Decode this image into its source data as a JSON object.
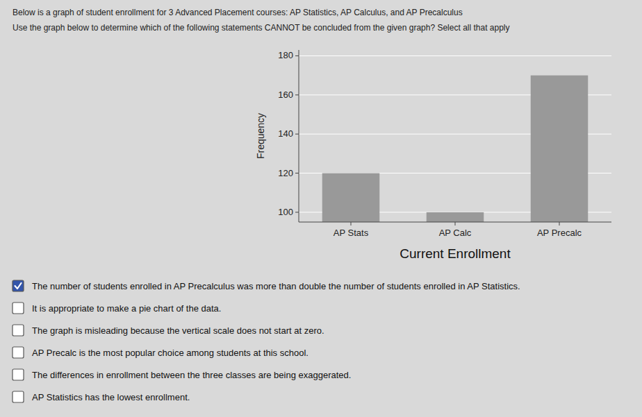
{
  "header_texts": [
    "Below is a graph of student enrollment for 3 Advanced Placement courses: AP Statistics, AP Calculus, and AP Precalculus",
    "Use the graph below to determine which of the following statements CANNOT be concluded from the given graph? Select all that apply"
  ],
  "checkboxes": [
    {
      "checked": true,
      "text": "The number of students enrolled in AP Precalculus was more than double the number of students enrolled in AP Statistics."
    },
    {
      "checked": false,
      "text": "It is appropriate to make a pie chart of the data."
    },
    {
      "checked": false,
      "text": "The graph is misleading because the vertical scale does not start at zero."
    },
    {
      "checked": false,
      "text": "AP Precalc is the most popular choice among students at this school."
    },
    {
      "checked": false,
      "text": "The differences in enrollment between the three classes are being exaggerated."
    },
    {
      "checked": false,
      "text": "AP Statistics has the lowest enrollment."
    }
  ],
  "chart_data": {
    "type": "bar",
    "title": "Current Enrollment",
    "ylabel": "Frequency",
    "categories": [
      "AP Stats",
      "AP Calc",
      "AP Precalc"
    ],
    "values": [
      120,
      100,
      170
    ],
    "color": "#999999",
    "ylim": [
      95,
      183
    ],
    "yticks": [
      100,
      120,
      140,
      160,
      180
    ],
    "grid": true
  }
}
